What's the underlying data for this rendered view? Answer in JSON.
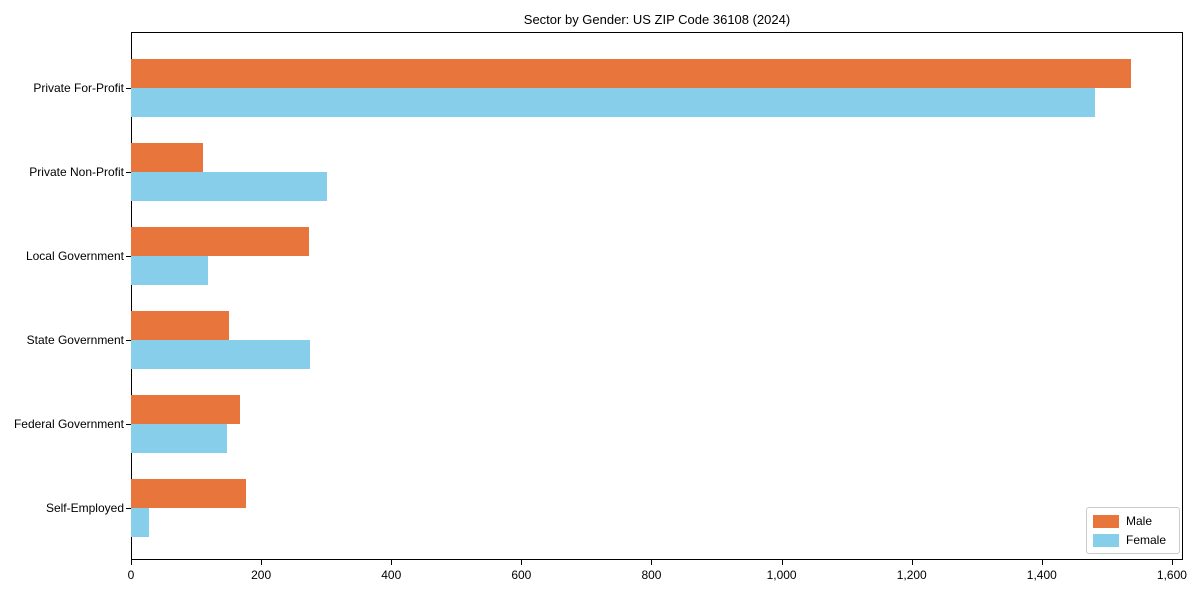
{
  "figure": {
    "title": "Sector by Gender: US ZIP Code 36108 (2024)"
  },
  "chart_data": {
    "type": "bar",
    "orientation": "horizontal",
    "title": "Sector by Gender: US ZIP Code 36108 (2024)",
    "categories": [
      "Private For-Profit",
      "Private Non-Profit",
      "Local Government",
      "State Government",
      "Federal Government",
      "Self-Employed"
    ],
    "series": [
      {
        "name": "Male",
        "color": "#e8763c",
        "values": [
          1537,
          111,
          274,
          150,
          167,
          177
        ]
      },
      {
        "name": "Female",
        "color": "#87ceeb",
        "values": [
          1482,
          302,
          119,
          275,
          147,
          28
        ]
      }
    ],
    "xlabel": "",
    "ylabel": "",
    "xlim": [
      0,
      1617
    ],
    "xticks": [
      0,
      200,
      400,
      600,
      800,
      1000,
      1200,
      1400,
      1600
    ],
    "xtick_labels": [
      "0",
      "200",
      "400",
      "600",
      "800",
      "1,000",
      "1,200",
      "1,400",
      "1,600"
    ],
    "legend_position": "lower right",
    "grid": false,
    "background_color": "#ffffff",
    "spine_color": "#000000"
  }
}
